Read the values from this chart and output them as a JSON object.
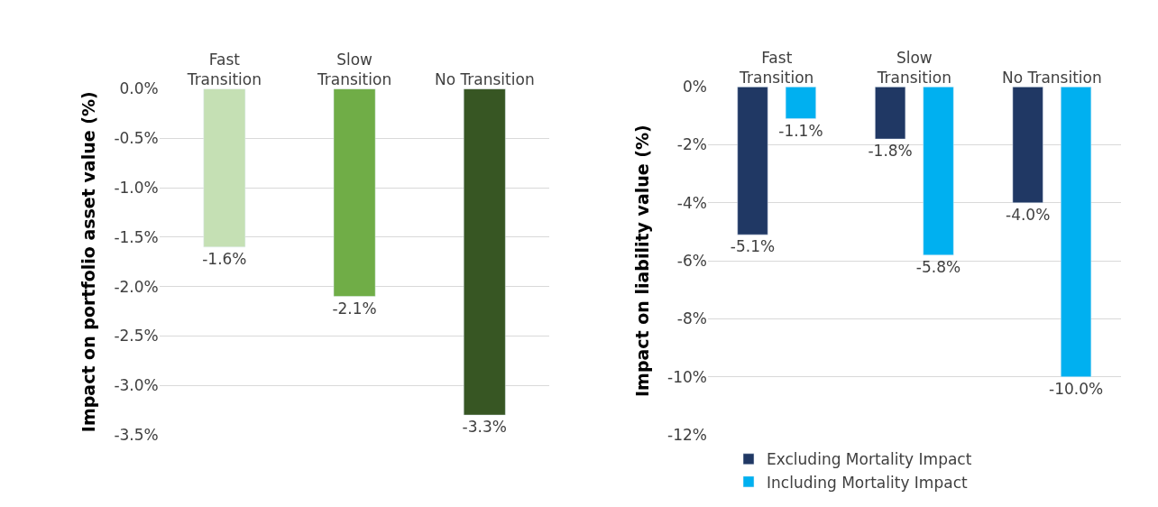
{
  "chart_data": [
    {
      "type": "bar",
      "ylabel": "Impact on portfolio asset value (%)",
      "categories": [
        "Fast Transition",
        "Slow Transition",
        "No Transition"
      ],
      "series": [
        {
          "values": [
            -1.6,
            -2.1,
            -3.3
          ],
          "colors": [
            "#c5e0b4",
            "#70ad47",
            "#375623"
          ],
          "value_labels": [
            "-1.6%",
            "-2.1%",
            "-3.3%"
          ]
        }
      ],
      "ylim": [
        -3.5,
        0
      ],
      "yticks": [
        {
          "value": 0,
          "label": "0.0%"
        },
        {
          "value": -0.5,
          "label": "-0.5%"
        },
        {
          "value": -1,
          "label": "-1.0%"
        },
        {
          "value": -1.5,
          "label": "-1.5%"
        },
        {
          "value": -2,
          "label": "-2.0%"
        },
        {
          "value": -2.5,
          "label": "-2.5%"
        },
        {
          "value": -3,
          "label": "-3.0%"
        },
        {
          "value": -3.5,
          "label": "-3.5%"
        }
      ],
      "grid": "y",
      "legend": false
    },
    {
      "type": "bar",
      "ylabel": "Impact on liability value (%)",
      "categories": [
        "Fast Transition",
        "Slow Transition",
        "No Transition"
      ],
      "series": [
        {
          "name": "Excluding Mortality Impact",
          "color": "#203864",
          "values": [
            -5.1,
            -1.8,
            -4.0
          ],
          "value_labels": [
            "-5.1%",
            "-1.8%",
            "-4.0%"
          ]
        },
        {
          "name": "Including Mortality Impact",
          "color": "#00b0f0",
          "values": [
            -1.1,
            -5.8,
            -10.0
          ],
          "value_labels": [
            "-1.1%",
            "-5.8%",
            "-10.0%"
          ]
        }
      ],
      "ylim": [
        -12,
        0
      ],
      "yticks": [
        {
          "value": 0,
          "label": "0%"
        },
        {
          "value": -2,
          "label": "-2%"
        },
        {
          "value": -4,
          "label": "-4%"
        },
        {
          "value": -6,
          "label": "-6%"
        },
        {
          "value": -8,
          "label": "-8%"
        },
        {
          "value": -10,
          "label": "-10%"
        },
        {
          "value": -12,
          "label": "-12%"
        }
      ],
      "grid": "y",
      "legend": "bottom"
    }
  ]
}
